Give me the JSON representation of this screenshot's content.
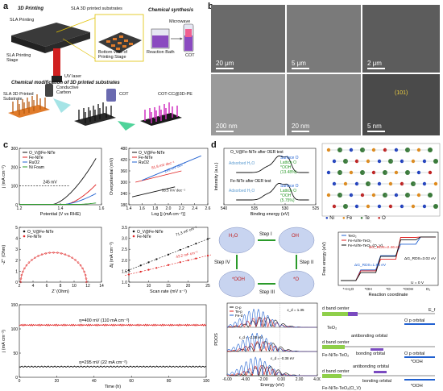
{
  "panel_labels": {
    "a": "a",
    "b": "b",
    "c": "c",
    "d": "d"
  },
  "panel_a": {
    "titles": {
      "printing": "3D Printing",
      "substrates": "SLA 3D printed substrates",
      "bottom_view": "Bottom view of Printing Stage",
      "stage": "SLA Printing Stage",
      "sla": "SLA Printing",
      "uv": "UV laser",
      "chem_synth": "Chemical synthesis",
      "microwave": "Microwave",
      "bath": "Reaction Bath",
      "cot": "COT",
      "chem_mod": "Chemical modification of 3D printed substrates",
      "conductive": "Conductive Carbon",
      "sla_sub": "SLA 3D Printed Substrate",
      "cot2": "COT",
      "cot_cc": "COT-CC@3D-PE"
    }
  },
  "panel_b": {
    "scales": [
      "20 μm",
      "5 μm",
      "2 μm",
      "200 nm",
      "20 nm",
      "5 nm"
    ],
    "lattice": "(101)"
  },
  "panel_c": {
    "lsv": {
      "legend": [
        "O_V@Fe-NiTe",
        "Fe-NiTe",
        "RuO2",
        "Ni Foam"
      ],
      "colors": [
        "#111111",
        "#e02020",
        "#2060d0",
        "#2a9a2a"
      ],
      "ylabel": "j (mA cm⁻²)",
      "xlabel": "Potential (V vs RHE)",
      "annot": "245 mV",
      "xticks": [
        "1.2",
        "1.4",
        "1.6"
      ],
      "yticks": [
        "0",
        "100",
        "200",
        "300"
      ]
    },
    "tafel": {
      "legend": [
        "O_V@Fe-NiTe",
        "Fe-NiTe",
        "RuO2"
      ],
      "ylabel": "Overpotential (mV)",
      "xlabel": "Log [j (mA cm⁻²)]",
      "annots": [
        "81.8 mV dec⁻¹",
        "145 mV dec⁻¹",
        "35.5 mV dec⁻¹"
      ],
      "xticks": [
        "1.4",
        "1.6",
        "1.8",
        "2.0",
        "2.2",
        "2.4",
        "2.6"
      ],
      "yticks": [
        "180",
        "240",
        "300",
        "360",
        "420",
        "480"
      ]
    },
    "eis": {
      "legend": [
        "O_V@Fe-NiTe",
        "Fe-NiTe"
      ],
      "ylabel": "-Z'' (Ohm)",
      "xlabel": "Z' (Ohm)",
      "xticks": [
        "2",
        "4",
        "6",
        "8",
        "10",
        "12",
        "14"
      ],
      "yticks": [
        "0",
        "1",
        "2",
        "3",
        "4",
        "5"
      ]
    },
    "cdl": {
      "legend": [
        "O_V@Fe-NiTe",
        "Fe-NiTe"
      ],
      "ylabel": "Δj (mA cm⁻²)",
      "xlabel": "Scan rate (mV s⁻¹)",
      "annots": [
        "71.3 mF cm⁻²",
        "43.2 mF cm⁻²"
      ],
      "xticks": [
        "5",
        "10",
        "15",
        "20",
        "25"
      ],
      "yticks": [
        "1.0",
        "1.5",
        "2.0",
        "2.5",
        "3.0",
        "3.5"
      ]
    },
    "stability": {
      "ylabel": "j (mA cm⁻²)",
      "xlabel": "Time (h)",
      "labels": [
        "η=400 mV (110 mA cm⁻²)",
        "η=295 mV (22 mA cm⁻²)"
      ],
      "xticks": [
        "0",
        "20",
        "40",
        "60",
        "80",
        "100"
      ],
      "yticks": [
        "0",
        "50",
        "100",
        "150"
      ]
    }
  },
  "panel_d": {
    "xps": {
      "labels": [
        "O_V@Fe-NiTe after OER test",
        "Fe-NiTe after OER test"
      ],
      "comps": [
        "Surface O",
        "Lattice O",
        "*OOH",
        "Adsorbed H₂O"
      ],
      "pct": [
        "(13.48%)",
        "(5.75%)"
      ],
      "ylabel": "Intensity (a.u.)",
      "xlabel": "Binding energy (eV)",
      "xticks": [
        "540",
        "535",
        "530",
        "525"
      ]
    },
    "crystal_legend": [
      "Ni",
      "Fe",
      "Te",
      "O"
    ],
    "crystal_colors": [
      "#1f3fbf",
      "#e08a1a",
      "#3a7a3a",
      "#c02020"
    ],
    "cycle": {
      "steps": [
        "Step I",
        "Step II",
        "Step III",
        "Step IV"
      ],
      "species": [
        "H₂O",
        "OH",
        "*O",
        "*OOH"
      ]
    },
    "energy": {
      "legend": [
        "TeO₂",
        "Fe-NiTe-TeO₂",
        "Fe-NiTe-TeO₂ (O_V)"
      ],
      "ylabel": "Free energy (eV)",
      "xlabel": "Reaction coordinate",
      "steps": [
        "*+H₂O",
        "*OH",
        "*O",
        "*OOH",
        "O₂"
      ],
      "annots": [
        "ΔG_RDS=3.02 eV",
        "ΔG_RDS=2.46 eV",
        "ΔG_RDS=1.84 eV",
        "U = 0 V"
      ]
    },
    "pdos": {
      "legend": [
        "O-p",
        "Te-p",
        "Fe-d"
      ],
      "annots": [
        "ε_d = -2.38 eV",
        "ε_d = -0.38 eV",
        "ε_d = 1.35"
      ],
      "ylabel": "PDOS",
      "xlabel": "Energy (eV)",
      "xticks": [
        "-6.00",
        "-4.00",
        "-2.00",
        "0.00",
        "2.00",
        "4.00"
      ]
    },
    "dband": {
      "rows": [
        "TeO₂",
        "Fe-NiTe-TeO₂",
        "Fe-NiTe-TeO₂(O_V)"
      ],
      "labels": [
        "d band center",
        "O p orbital",
        "antibonding orbital",
        "bonding orbital",
        "*OOH",
        "E_f"
      ]
    }
  }
}
